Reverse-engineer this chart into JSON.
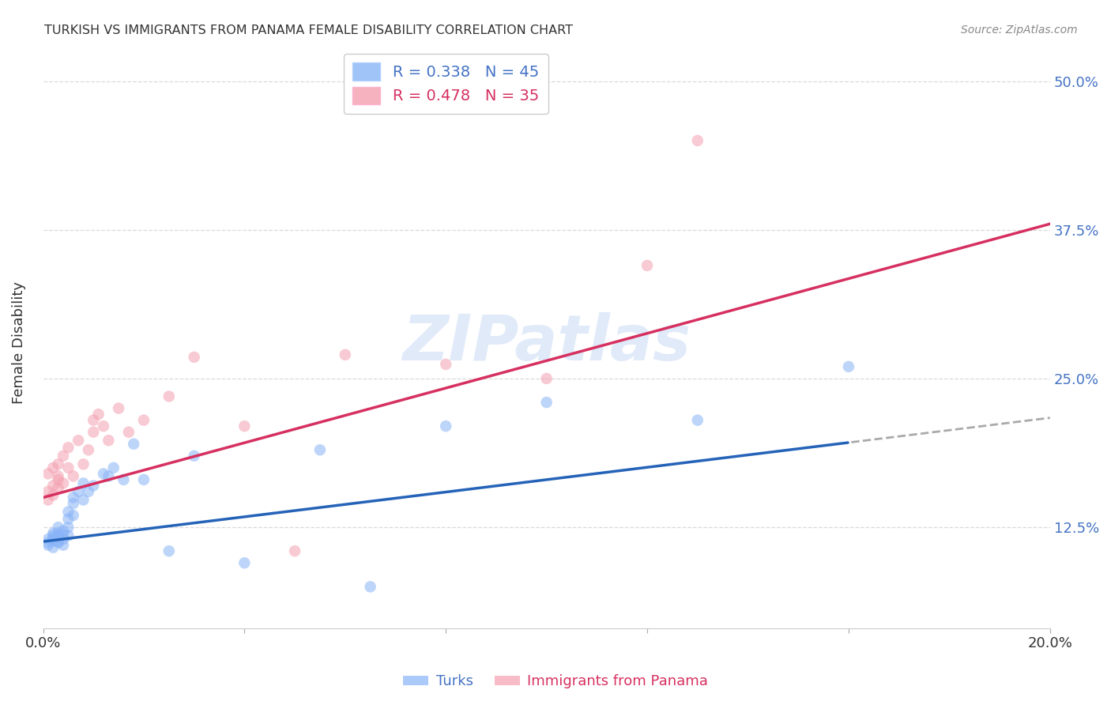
{
  "title": "TURKISH VS IMMIGRANTS FROM PANAMA FEMALE DISABILITY CORRELATION CHART",
  "source": "Source: ZipAtlas.com",
  "ylabel": "Female Disability",
  "xlim": [
    0.0,
    0.2
  ],
  "ylim": [
    0.04,
    0.52
  ],
  "yticks": [
    0.125,
    0.25,
    0.375,
    0.5
  ],
  "ytick_labels": [
    "12.5%",
    "25.0%",
    "37.5%",
    "50.0%"
  ],
  "xticks": [
    0.0,
    0.04,
    0.08,
    0.12,
    0.16,
    0.2
  ],
  "xtick_labels": [
    "0.0%",
    "",
    "",
    "",
    "",
    "20.0%"
  ],
  "background_color": "#ffffff",
  "grid_color": "#d0d0d0",
  "watermark": "ZIPatlas",
  "series": [
    {
      "name": "Turks",
      "R": 0.338,
      "N": 45,
      "color": "#89b4f7",
      "line_color": "#2563b8",
      "dot_size": 110,
      "x": [
        0.001,
        0.001,
        0.001,
        0.002,
        0.002,
        0.002,
        0.002,
        0.002,
        0.003,
        0.003,
        0.003,
        0.003,
        0.003,
        0.003,
        0.004,
        0.004,
        0.004,
        0.004,
        0.005,
        0.005,
        0.005,
        0.005,
        0.006,
        0.006,
        0.006,
        0.007,
        0.008,
        0.008,
        0.009,
        0.01,
        0.012,
        0.013,
        0.014,
        0.016,
        0.018,
        0.02,
        0.025,
        0.03,
        0.04,
        0.055,
        0.065,
        0.08,
        0.1,
        0.13,
        0.16
      ],
      "y": [
        0.115,
        0.112,
        0.11,
        0.12,
        0.118,
        0.114,
        0.108,
        0.116,
        0.125,
        0.12,
        0.117,
        0.112,
        0.118,
        0.113,
        0.122,
        0.115,
        0.119,
        0.11,
        0.132,
        0.138,
        0.125,
        0.118,
        0.145,
        0.15,
        0.135,
        0.155,
        0.148,
        0.162,
        0.155,
        0.16,
        0.17,
        0.168,
        0.175,
        0.165,
        0.195,
        0.165,
        0.105,
        0.185,
        0.095,
        0.19,
        0.075,
        0.21,
        0.23,
        0.215,
        0.26
      ],
      "line_intercept": 0.113,
      "line_slope": 0.52
    },
    {
      "name": "Immigrants from Panama",
      "R": 0.478,
      "N": 35,
      "color": "#f4a0b0",
      "line_color": "#d63060",
      "dot_size": 110,
      "x": [
        0.001,
        0.001,
        0.001,
        0.002,
        0.002,
        0.002,
        0.003,
        0.003,
        0.003,
        0.003,
        0.004,
        0.004,
        0.005,
        0.005,
        0.006,
        0.007,
        0.008,
        0.009,
        0.01,
        0.01,
        0.011,
        0.012,
        0.013,
        0.015,
        0.017,
        0.02,
        0.025,
        0.03,
        0.04,
        0.05,
        0.06,
        0.08,
        0.1,
        0.12,
        0.13
      ],
      "y": [
        0.155,
        0.148,
        0.17,
        0.16,
        0.175,
        0.152,
        0.165,
        0.158,
        0.168,
        0.178,
        0.185,
        0.162,
        0.175,
        0.192,
        0.168,
        0.198,
        0.178,
        0.19,
        0.215,
        0.205,
        0.22,
        0.21,
        0.198,
        0.225,
        0.205,
        0.215,
        0.235,
        0.268,
        0.21,
        0.105,
        0.27,
        0.262,
        0.25,
        0.345,
        0.45
      ],
      "line_intercept": 0.15,
      "line_slope": 1.15
    }
  ]
}
